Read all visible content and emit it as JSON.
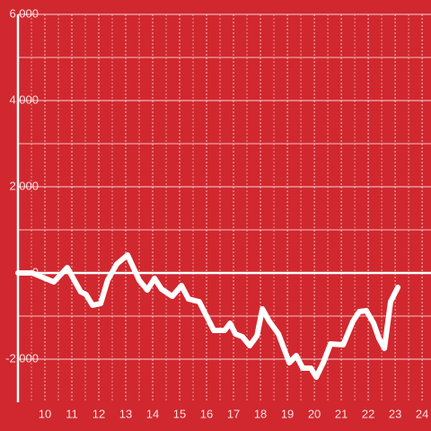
{
  "chart_data": {
    "type": "line",
    "background": "#d0282e",
    "color": "#ffffff",
    "grid": true,
    "x": [
      9,
      9.53,
      10.33,
      10.83,
      11.33,
      11.53,
      11.77,
      12.07,
      12.33,
      12.67,
      13.07,
      13.5,
      13.8,
      14.07,
      14.33,
      14.73,
      15.07,
      15.33,
      15.73,
      16.27,
      16.67,
      16.87,
      17.07,
      17.33,
      17.6,
      17.87,
      18.07,
      18.33,
      18.67,
      19.07,
      19.33,
      19.57,
      19.87,
      20.07,
      20.33,
      20.6,
      21.07,
      21.43,
      21.67,
      21.93,
      22.2,
      22.4,
      22.6,
      22.83,
      23.1
    ],
    "values": [
      0,
      0,
      -208,
      125,
      -438,
      -500,
      -750,
      -708,
      -167,
      208,
      417,
      -167,
      -396,
      -125,
      -375,
      -542,
      -292,
      -604,
      -667,
      -1333,
      -1333,
      -1167,
      -1417,
      -1479,
      -1688,
      -1458,
      -833,
      -1125,
      -1417,
      -2083,
      -1917,
      -2208,
      -2208,
      -2417,
      -2083,
      -1646,
      -1667,
      -1125,
      -896,
      -875,
      -1167,
      -1521,
      -1750,
      -667,
      -333
    ],
    "xlim": [
      9,
      24.33
    ],
    "ylim": [
      -3000,
      6000
    ],
    "xticks": [
      10,
      11,
      12,
      13,
      14,
      15,
      16,
      17,
      18,
      19,
      20,
      21,
      22,
      23,
      24
    ],
    "yticks": [
      {
        "value": -2000,
        "label": "-2,000"
      },
      0,
      {
        "value": 2000,
        "label": "2,000"
      },
      {
        "value": 4000,
        "label": "4,000"
      },
      {
        "value": 6000,
        "label": "6,000"
      }
    ],
    "minor_yticks": [
      -1000,
      1000,
      3000,
      5000
    ]
  }
}
